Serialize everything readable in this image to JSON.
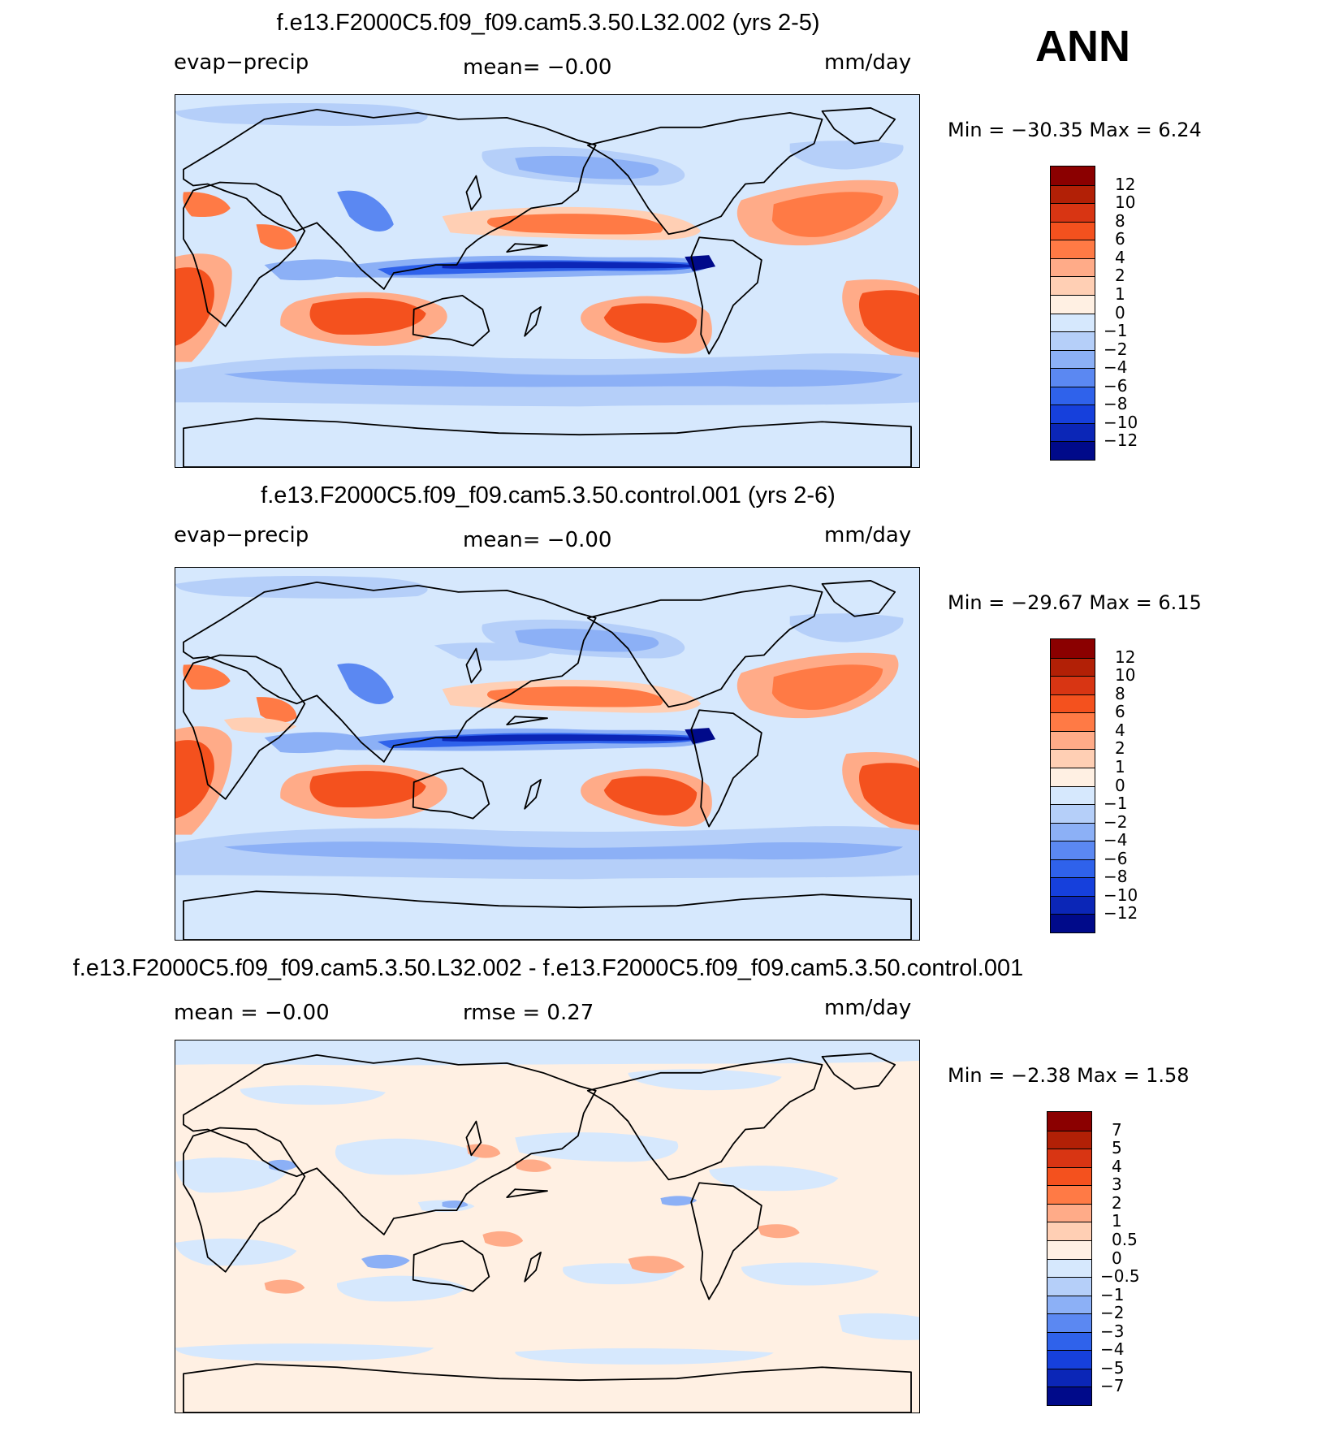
{
  "season": "ANN",
  "panels": [
    {
      "title": "f.e13.F2000C5.f09_f09.cam5.3.50.L32.002 (yrs 2-5)",
      "left_label": "evap−precip",
      "center_label": "mean=   −0.00",
      "right_label": "mm/day",
      "min_max": "Min  =  −30.35  Max  =    6.24",
      "colorbar": {
        "colors": [
          "#8b0000",
          "#b22006",
          "#d83513",
          "#f4511e",
          "#ff7a45",
          "#ffab88",
          "#ffcfb4",
          "#fff0e3",
          "#d6e8fd",
          "#b5cff9",
          "#8cb0f6",
          "#5b88f2",
          "#2f62eb",
          "#1640dc",
          "#0b26b7",
          "#000a8a"
        ],
        "labels": [
          "12",
          "10",
          "8",
          "6",
          "4",
          "2",
          "1",
          "0",
          "−1",
          "−2",
          "−4",
          "−6",
          "−8",
          "−10",
          "−12"
        ]
      }
    },
    {
      "title": "f.e13.F2000C5.f09_f09.cam5.3.50.control.001 (yrs 2-6)",
      "left_label": "evap−precip",
      "center_label": "mean=   −0.00",
      "right_label": "mm/day",
      "min_max": "Min  =  −29.67  Max  =    6.15",
      "colorbar": {
        "colors": [
          "#8b0000",
          "#b22006",
          "#d83513",
          "#f4511e",
          "#ff7a45",
          "#ffab88",
          "#ffcfb4",
          "#fff0e3",
          "#d6e8fd",
          "#b5cff9",
          "#8cb0f6",
          "#5b88f2",
          "#2f62eb",
          "#1640dc",
          "#0b26b7",
          "#000a8a"
        ],
        "labels": [
          "12",
          "10",
          "8",
          "6",
          "4",
          "2",
          "1",
          "0",
          "−1",
          "−2",
          "−4",
          "−6",
          "−8",
          "−10",
          "−12"
        ]
      }
    },
    {
      "title": "f.e13.F2000C5.f09_f09.cam5.3.50.L32.002 - f.e13.F2000C5.f09_f09.cam5.3.50.control.001",
      "left_label": "mean  =    −0.00",
      "center_label": "rmse  =     0.27",
      "right_label": "mm/day",
      "min_max": "Min  =    −2.38  Max  =     1.58",
      "colorbar": {
        "colors": [
          "#8b0000",
          "#b22006",
          "#d83513",
          "#f4511e",
          "#ff7a45",
          "#ffab88",
          "#ffcfb4",
          "#fff0e3",
          "#d6e8fd",
          "#b5cff9",
          "#8cb0f6",
          "#5b88f2",
          "#2f62eb",
          "#1640dc",
          "#0b26b7",
          "#000a8a"
        ],
        "labels": [
          "7",
          "5",
          "4",
          "3",
          "2",
          "1",
          "0.5",
          "0",
          "−0.5",
          "−1",
          "−2",
          "−3",
          "−4",
          "−5",
          "−7"
        ]
      }
    }
  ]
}
